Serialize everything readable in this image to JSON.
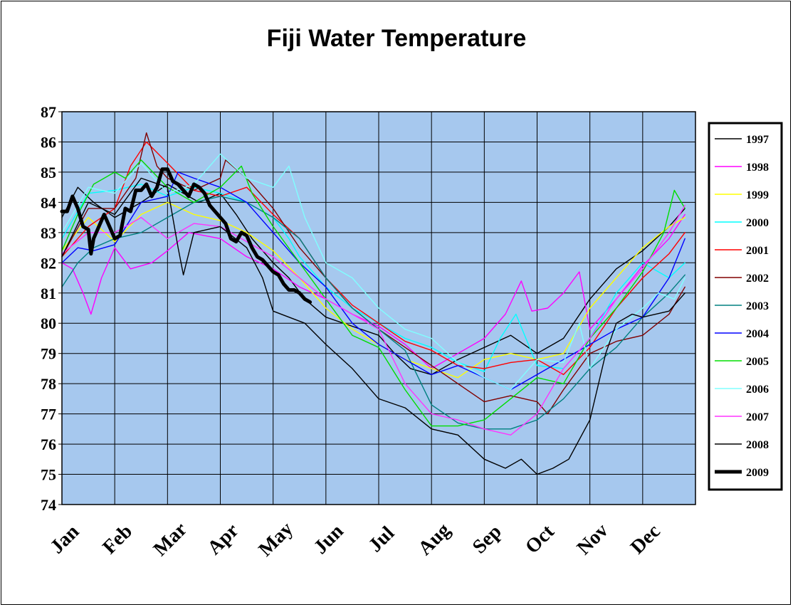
{
  "chart_data": {
    "type": "line",
    "title": "Fiji Water Temperature",
    "xlabel": "",
    "ylabel": "",
    "ylim": [
      74,
      87
    ],
    "yticks": [
      74,
      75,
      76,
      77,
      78,
      79,
      80,
      81,
      82,
      83,
      84,
      85,
      86,
      87
    ],
    "categories": [
      "Jan",
      "Feb",
      "Mar",
      "Apr",
      "May",
      "Jun",
      "Jul",
      "Aug",
      "Sep",
      "Oct",
      "Nov",
      "Dec"
    ],
    "grid": true,
    "legend_position": "right",
    "plot_background": "#a6c8ee",
    "x_unit_note": "x values are month positions (0 = start of Jan, 12 = end of Dec)",
    "series": [
      {
        "name": "1997",
        "color": "#000000",
        "width": 1.4,
        "x": [
          0,
          0.3,
          0.6,
          1,
          1.5,
          2,
          2.3,
          2.6,
          3,
          3.3,
          3.6,
          4,
          4.3,
          4.6,
          5,
          5.5,
          6,
          6.3,
          6.6,
          7,
          7.5,
          8,
          8.5,
          9,
          9.5,
          10,
          10.5,
          11,
          11.5,
          11.8
        ],
        "values": [
          83.5,
          84.5,
          84,
          83.5,
          84,
          84.6,
          84.3,
          84,
          84.3,
          83.6,
          82.8,
          82,
          81.5,
          80.8,
          80.2,
          79.9,
          79.6,
          79,
          78.5,
          78.3,
          78.8,
          79.2,
          79.6,
          79,
          79.5,
          80.8,
          81.8,
          82.4,
          83.2,
          83.8
        ]
      },
      {
        "name": "1998",
        "color": "#ff00ff",
        "width": 1.4,
        "x": [
          0,
          0.2,
          0.4,
          0.55,
          0.75,
          1,
          1.3,
          1.7,
          2,
          2.4,
          3,
          3.5,
          4,
          4.5,
          5,
          5.5,
          6,
          6.5,
          7,
          7.5,
          8,
          8.4,
          8.7,
          8.9,
          9.2,
          9.5,
          9.8,
          10,
          10.5,
          11,
          11.5,
          11.8
        ],
        "values": [
          82,
          81.8,
          81,
          80.3,
          81.5,
          82.5,
          81.8,
          82,
          82.4,
          83,
          82.8,
          82.2,
          81.8,
          81.2,
          80.8,
          80.3,
          79.9,
          79.3,
          78.5,
          79,
          79.5,
          80.3,
          81.4,
          80.4,
          80.5,
          81,
          81.7,
          79.8,
          80.8,
          81.9,
          82.8,
          83.6
        ]
      },
      {
        "name": "1999",
        "color": "#ffff00",
        "width": 1.4,
        "x": [
          0,
          0.5,
          1,
          1.5,
          2,
          2.5,
          3,
          3.5,
          4,
          4.5,
          5,
          5.5,
          6,
          6.5,
          7,
          7.5,
          8,
          8.5,
          9,
          9.5,
          10,
          10.5,
          11,
          11.5,
          11.8
        ],
        "values": [
          82.4,
          83.5,
          82.7,
          83.6,
          84,
          83.6,
          83.4,
          83,
          82.4,
          81.5,
          80.5,
          79.8,
          79.3,
          78.8,
          78.5,
          78.2,
          78.8,
          79,
          78.8,
          79,
          80.5,
          81.5,
          82.5,
          83.2,
          83.5
        ]
      },
      {
        "name": "2000",
        "color": "#00ffff",
        "width": 1.4,
        "x": [
          0,
          0.5,
          1,
          1.5,
          2,
          2.5,
          3,
          3.5,
          4,
          4.3,
          4.5,
          5,
          5.5,
          6,
          6.5,
          7,
          7.5,
          8,
          8.3,
          8.6,
          9,
          9.5,
          10,
          10.5,
          11,
          11.5,
          11.8
        ],
        "values": [
          82.8,
          84.3,
          84.4,
          84.6,
          84.2,
          84.5,
          84.3,
          84,
          83.5,
          82.8,
          82.2,
          81.2,
          80.5,
          80,
          79.5,
          79.2,
          78.7,
          78.4,
          79.5,
          80.3,
          78.6,
          78.5,
          79.5,
          81,
          82,
          81.5,
          82
        ]
      },
      {
        "name": "2001",
        "color": "#ff0000",
        "width": 1.4,
        "x": [
          0,
          0.5,
          1,
          1.3,
          1.6,
          2,
          2.5,
          3,
          3.5,
          4,
          4.5,
          5,
          5.5,
          6,
          6.5,
          7,
          7.5,
          8,
          8.5,
          9,
          9.5,
          10,
          10.5,
          11,
          11.5,
          11.8
        ],
        "values": [
          82.2,
          83.2,
          83.8,
          85.2,
          86,
          85.3,
          84.4,
          84.2,
          84.5,
          83.6,
          82.8,
          81.5,
          80.6,
          80,
          79.4,
          79.1,
          78.6,
          78.5,
          78.7,
          78.8,
          78.3,
          79.2,
          80.5,
          81.5,
          82.3,
          83
        ]
      },
      {
        "name": "2002",
        "color": "#800000",
        "width": 1.4,
        "x": [
          0,
          0.5,
          1,
          1.4,
          1.6,
          1.8,
          2,
          2.5,
          3,
          3.1,
          3.5,
          4,
          4.5,
          5,
          5.5,
          6,
          6.5,
          7,
          7.5,
          8,
          8.5,
          9,
          9.2,
          9.5,
          10,
          10.5,
          11,
          11.5,
          11.8
        ],
        "values": [
          82.2,
          83.8,
          83.8,
          84.8,
          86.3,
          85.2,
          84.8,
          84.4,
          84.8,
          85.4,
          84.8,
          83.8,
          82.5,
          81.5,
          80.5,
          79.8,
          79.2,
          78.6,
          78,
          77.4,
          77.6,
          77.4,
          77,
          77.8,
          79,
          79.4,
          79.6,
          80.3,
          81.2
        ]
      },
      {
        "name": "2003",
        "color": "#008080",
        "width": 1.4,
        "x": [
          0,
          0.3,
          0.6,
          1,
          1.5,
          2,
          2.5,
          3,
          3.5,
          4,
          4.5,
          5,
          5.5,
          6,
          6.5,
          7,
          7.5,
          8,
          8.5,
          9,
          9.5,
          10,
          10.5,
          11,
          11.5,
          11.8
        ],
        "values": [
          81.2,
          82,
          82.5,
          82.8,
          83,
          83.5,
          84,
          84.2,
          84,
          83.5,
          82.8,
          81.5,
          80.5,
          79.8,
          79.1,
          77.3,
          76.7,
          76.5,
          76.5,
          76.8,
          77.5,
          78.5,
          79.2,
          80.2,
          81,
          81.6
        ]
      },
      {
        "name": "2004",
        "color": "#0000ff",
        "width": 1.4,
        "x": [
          0,
          0.3,
          0.6,
          1,
          1.5,
          2,
          2.2,
          2.5,
          3,
          3.5,
          4,
          4.5,
          5,
          5.5,
          6,
          6.5,
          7,
          7.5,
          8,
          8.5,
          9,
          9.5,
          10,
          10.5,
          11,
          11.5,
          11.8
        ],
        "values": [
          82,
          82.5,
          82.4,
          82.6,
          84,
          84.2,
          85,
          84.8,
          84.5,
          84,
          83,
          82,
          81.2,
          80,
          79.3,
          78.8,
          78.3,
          78.6,
          78.2,
          77.8,
          78.3,
          78.8,
          79.3,
          79.8,
          80.2,
          81.5,
          82.8
        ]
      },
      {
        "name": "2005",
        "color": "#00dd00",
        "width": 1.4,
        "x": [
          0,
          0.3,
          0.6,
          1,
          1.2,
          1.5,
          2,
          2.5,
          3,
          3.4,
          3.6,
          4,
          4.5,
          5,
          5.5,
          6,
          6.5,
          7,
          7.5,
          8,
          8.5,
          9,
          9.5,
          10,
          10.5,
          11,
          11.4,
          11.6,
          11.8
        ],
        "values": [
          82.4,
          83.6,
          84.6,
          85,
          84.8,
          85.4,
          84.5,
          84,
          84.5,
          85.2,
          84.3,
          83.2,
          82,
          80.8,
          79.6,
          79.2,
          77.8,
          76.6,
          76.6,
          76.8,
          77.5,
          78.2,
          78,
          79.5,
          80.5,
          81.7,
          83,
          84.4,
          83.8
        ]
      },
      {
        "name": "2006",
        "color": "#80ffff",
        "width": 1.4,
        "x": [
          0,
          0.5,
          1,
          1.5,
          2,
          2.5,
          3,
          3.5,
          4,
          4.3,
          4.6,
          5,
          5.5,
          6,
          6.5,
          7,
          7.5,
          8,
          8.5,
          9,
          9.5,
          9.8,
          10,
          10.5,
          11,
          11.3,
          11.6,
          11.8
        ],
        "values": [
          83,
          84.5,
          84.3,
          85.3,
          84.3,
          84.6,
          85.6,
          84.8,
          84.5,
          85.2,
          83.5,
          82,
          81.5,
          80.5,
          79.8,
          79.5,
          78.7,
          78.2,
          77.8,
          78.8,
          78.7,
          80,
          78.5,
          79.8,
          80.5,
          81,
          80.8,
          81.5
        ]
      },
      {
        "name": "2007",
        "color": "#ff33ff",
        "width": 1.4,
        "x": [
          0,
          0.5,
          1,
          1.5,
          2,
          2.5,
          3,
          3.5,
          4,
          4.5,
          5,
          5.5,
          6,
          6.5,
          7,
          7.5,
          8,
          8.5,
          9,
          9.5,
          10,
          10.5,
          11,
          11.5,
          11.8
        ],
        "values": [
          82.3,
          83,
          83,
          83.5,
          82.8,
          83.3,
          83.2,
          82.7,
          82.2,
          81.5,
          80.8,
          80.3,
          79.8,
          78,
          77,
          76.8,
          76.5,
          76.3,
          77,
          78.5,
          79.5,
          80.8,
          81.8,
          83,
          83.9
        ]
      },
      {
        "name": "2008",
        "color": "#000000",
        "width": 1.4,
        "x": [
          0,
          0.5,
          1,
          1.5,
          2,
          2.2,
          2.3,
          2.5,
          3,
          3.5,
          3.8,
          4,
          4.3,
          4.6,
          5,
          5.5,
          6,
          6.5,
          7,
          7.5,
          8,
          8.4,
          8.7,
          9,
          9.3,
          9.6,
          10,
          10.3,
          10.5,
          10.8,
          11,
          11.5,
          11.8
        ],
        "values": [
          82.2,
          84,
          83.6,
          84.8,
          84.5,
          82.5,
          81.6,
          83,
          83.2,
          82.5,
          81.5,
          80.4,
          80.2,
          80,
          79.3,
          78.5,
          77.5,
          77.2,
          76.5,
          76.3,
          75.5,
          75.2,
          75.5,
          75,
          75.2,
          75.5,
          76.8,
          79,
          80,
          80.3,
          80.2,
          80.4,
          81
        ]
      },
      {
        "name": "2009",
        "color": "#000000",
        "width": 5,
        "x": [
          0,
          0.1,
          0.2,
          0.3,
          0.4,
          0.5,
          0.55,
          0.6,
          0.7,
          0.8,
          0.9,
          1,
          1.1,
          1.2,
          1.3,
          1.4,
          1.5,
          1.6,
          1.7,
          1.8,
          1.9,
          2,
          2.1,
          2.2,
          2.3,
          2.4,
          2.5,
          2.6,
          2.7,
          2.8,
          2.9,
          3,
          3.1,
          3.2,
          3.3,
          3.4,
          3.5,
          3.6,
          3.7,
          3.8,
          3.9,
          4,
          4.1,
          4.2,
          4.3,
          4.4,
          4.5,
          4.6,
          4.7
        ],
        "values": [
          83.7,
          83.7,
          84.2,
          83.8,
          83.2,
          83.1,
          82.3,
          82.8,
          83.2,
          83.6,
          83.2,
          82.8,
          82.9,
          83.8,
          83.7,
          84.4,
          84.4,
          84.6,
          84.2,
          84.5,
          85.1,
          85.1,
          84.7,
          84.6,
          84.4,
          84.2,
          84.6,
          84.5,
          84.3,
          83.9,
          83.7,
          83.5,
          83.3,
          82.8,
          82.7,
          83,
          82.9,
          82.5,
          82.2,
          82.1,
          81.9,
          81.7,
          81.6,
          81.3,
          81.1,
          81.1,
          81,
          80.8,
          80.7
        ]
      }
    ]
  }
}
